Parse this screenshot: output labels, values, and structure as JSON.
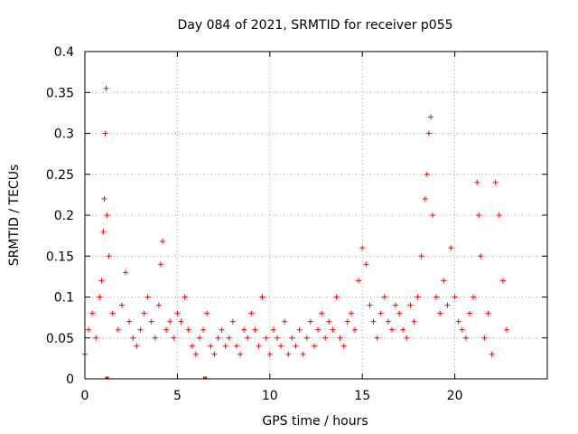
{
  "chart_data": {
    "type": "scatter",
    "title": "Day 084 of 2021, SRMTID for receiver p055",
    "xlabel": "GPS time / hours",
    "ylabel": "SRMTID / TECUs",
    "xlim": [
      0,
      25
    ],
    "ylim": [
      0,
      0.4
    ],
    "xticks": [
      0,
      5,
      10,
      15,
      20
    ],
    "xtick_labels": [
      "0",
      "5",
      "10",
      "15",
      "20"
    ],
    "yticks": [
      0,
      0.05,
      0.1,
      0.15,
      0.2,
      0.25,
      0.3,
      0.35,
      0.4
    ],
    "ytick_labels": [
      "0",
      "0.05",
      "0.1",
      "0.15",
      "0.2",
      "0.25",
      "0.3",
      "0.35",
      "0.4"
    ],
    "grid": true,
    "marker": "plus",
    "color": "#ff0000",
    "series": [
      {
        "name": "SRMTID",
        "x": [
          0.0,
          0.2,
          0.4,
          0.6,
          0.8,
          0.9,
          1.0,
          1.05,
          1.1,
          1.15,
          1.2,
          1.3,
          1.5,
          1.8,
          2.0,
          2.2,
          2.4,
          2.6,
          2.8,
          3.0,
          3.2,
          3.4,
          3.6,
          3.8,
          4.0,
          4.1,
          4.2,
          4.4,
          4.6,
          4.8,
          5.0,
          5.2,
          5.4,
          5.6,
          5.8,
          6.0,
          6.2,
          6.4,
          6.6,
          6.8,
          7.0,
          7.2,
          7.4,
          7.6,
          7.8,
          8.0,
          8.2,
          8.4,
          8.6,
          8.8,
          9.0,
          9.2,
          9.4,
          9.6,
          9.8,
          10.0,
          10.2,
          10.4,
          10.6,
          10.8,
          11.0,
          11.2,
          11.4,
          11.6,
          11.8,
          12.0,
          12.2,
          12.4,
          12.6,
          12.8,
          13.0,
          13.2,
          13.4,
          13.6,
          13.8,
          14.0,
          14.2,
          14.4,
          14.6,
          14.8,
          15.0,
          15.2,
          15.4,
          15.6,
          15.8,
          16.0,
          16.2,
          16.4,
          16.6,
          16.8,
          17.0,
          17.2,
          17.4,
          17.6,
          17.8,
          18.0,
          18.2,
          18.4,
          18.5,
          18.6,
          18.7,
          18.8,
          19.0,
          19.2,
          19.4,
          19.6,
          19.8,
          20.0,
          20.2,
          20.4,
          20.6,
          20.8,
          21.0,
          21.2,
          21.3,
          21.4,
          21.6,
          21.8,
          22.0,
          22.2,
          22.4,
          22.6,
          22.8
        ],
        "y": [
          0.03,
          0.06,
          0.08,
          0.05,
          0.1,
          0.12,
          0.18,
          0.22,
          0.3,
          0.355,
          0.2,
          0.15,
          0.08,
          0.06,
          0.09,
          0.13,
          0.07,
          0.05,
          0.04,
          0.06,
          0.08,
          0.1,
          0.07,
          0.05,
          0.09,
          0.14,
          0.168,
          0.06,
          0.07,
          0.05,
          0.08,
          0.07,
          0.1,
          0.06,
          0.04,
          0.03,
          0.05,
          0.06,
          0.08,
          0.04,
          0.03,
          0.05,
          0.06,
          0.04,
          0.05,
          0.07,
          0.04,
          0.03,
          0.06,
          0.05,
          0.08,
          0.06,
          0.04,
          0.1,
          0.05,
          0.03,
          0.06,
          0.05,
          0.04,
          0.07,
          0.03,
          0.05,
          0.04,
          0.06,
          0.03,
          0.05,
          0.07,
          0.04,
          0.06,
          0.08,
          0.05,
          0.07,
          0.06,
          0.1,
          0.05,
          0.04,
          0.07,
          0.08,
          0.06,
          0.12,
          0.16,
          0.14,
          0.09,
          0.07,
          0.05,
          0.08,
          0.1,
          0.07,
          0.06,
          0.09,
          0.08,
          0.06,
          0.05,
          0.09,
          0.07,
          0.1,
          0.15,
          0.22,
          0.25,
          0.3,
          0.32,
          0.2,
          0.1,
          0.08,
          0.12,
          0.09,
          0.16,
          0.1,
          0.07,
          0.06,
          0.05,
          0.08,
          0.1,
          0.24,
          0.2,
          0.15,
          0.05,
          0.08,
          0.03,
          0.24,
          0.2,
          0.12,
          0.06
        ]
      }
    ],
    "zero_markers_x": [
      1.2,
      6.5
    ]
  }
}
